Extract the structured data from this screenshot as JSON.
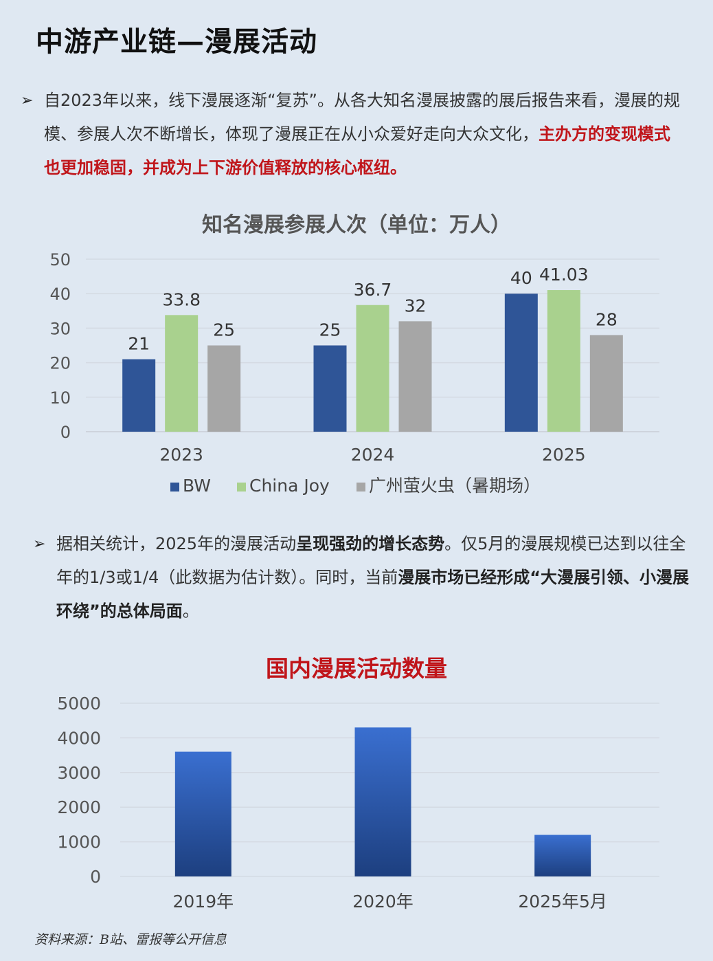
{
  "page_title": "中游产业链—漫展活动",
  "paragraph1": {
    "arrow": "➢",
    "text_normal": "自2023年以来，线下漫展逐渐“复苏”。从各大知名漫展披露的展后报告来看，漫展的规模、参展人次不断增长，体现了漫展正在从小众爱好走向大众文化，",
    "text_red": "主办方的变现模式也更加稳固，并成为上下游价值释放的核心枢纽。"
  },
  "paragraph2": {
    "arrow": "➢",
    "seg1": "据相关统计，2025年的漫展活动",
    "seg2_bold": "呈现强劲的增长态势",
    "seg3": "。仅5月的漫展规模已达到以往全年的1/3或1/4（此数据为估计数）。同时，当前",
    "seg4_bold": "漫展市场已经形成“大漫展引领、小漫展环绕”的总体局面",
    "seg5": "。"
  },
  "source": "资料来源：B站、雷报等公开信息",
  "chart_data": [
    {
      "type": "bar",
      "title": "知名漫展参展人次（单位：万人）",
      "categories": [
        "2023",
        "2024",
        "2025"
      ],
      "series": [
        {
          "name": "BW",
          "values": [
            21,
            25,
            40
          ],
          "labels": [
            "21",
            "25",
            "40"
          ],
          "color": "#2f5597"
        },
        {
          "name": "China Joy",
          "values": [
            33.8,
            36.7,
            41.03
          ],
          "labels": [
            "33.8",
            "36.7",
            "41.03"
          ],
          "color": "#a9d18e"
        },
        {
          "name": "广州萤火虫（暑期场）",
          "values": [
            25,
            32,
            28
          ],
          "labels": [
            "25",
            "32",
            "28"
          ],
          "color": "#a6a6a6"
        }
      ],
      "yticks": [
        "0",
        "10",
        "20",
        "30",
        "40",
        "50"
      ],
      "ylim": [
        0,
        50
      ],
      "grid": true,
      "legend": "bottom"
    },
    {
      "type": "bar",
      "title": "国内漫展活动数量",
      "categories": [
        "2019年",
        "2020年",
        "2025年5月"
      ],
      "values": [
        3600,
        4300,
        1200
      ],
      "color": "#2f62c4",
      "yticks": [
        "0",
        "1000",
        "2000",
        "3000",
        "4000",
        "5000"
      ],
      "ylim": [
        0,
        5000
      ],
      "grid": true,
      "legend": "none"
    }
  ]
}
